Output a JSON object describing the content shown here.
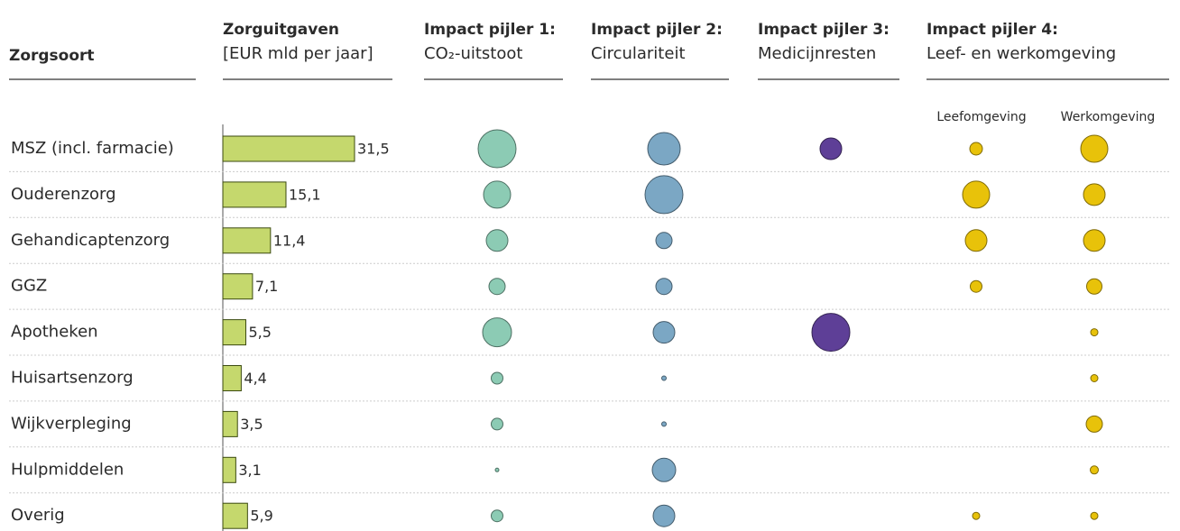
{
  "header": {
    "category": "Zorgsoort",
    "spending": {
      "title": "Zorguitgaven",
      "unit": "[EUR mld per jaar]"
    },
    "pillars": [
      {
        "title": "Impact pijler 1:",
        "subtitle": "CO₂-uitstoot"
      },
      {
        "title": "Impact pijler 2:",
        "subtitle": "Circulariteit"
      },
      {
        "title": "Impact pijler 3:",
        "subtitle": "Medicijnresten"
      },
      {
        "title": "Impact pijler 4:",
        "subtitle": "Leef- en werkomgeving",
        "columns": [
          "Leefomgeving",
          "Werkomgeving"
        ]
      }
    ]
  },
  "chart_data": {
    "type": "bubble-table",
    "categories": [
      "MSZ (incl. farmacie)",
      "Ouderenzorg",
      "Gehandicaptenzorg",
      "GGZ",
      "Apotheken",
      "Huisartsenzorg",
      "Wijkverpleging",
      "Hulpmiddelen",
      "Overig"
    ],
    "spending": {
      "values": [
        31.5,
        15.1,
        11.4,
        7.1,
        5.5,
        4.4,
        3.5,
        3.1,
        5.9
      ],
      "value_labels": [
        "31,5",
        "15,1",
        "11,4",
        "7,1",
        "5,5",
        "4,4",
        "3,5",
        "3,1",
        "5,9"
      ],
      "color": "#c5d86d"
    },
    "series": [
      {
        "color": "#8ccbb4",
        "values": [
          42,
          30,
          24,
          18,
          32,
          13,
          13,
          4,
          13
        ]
      },
      {
        "color": "#7ba7c4",
        "values": [
          36,
          42,
          18,
          18,
          24,
          5,
          5,
          26,
          24
        ]
      },
      {
        "color": "#5e3f97",
        "values": [
          24,
          null,
          null,
          null,
          42,
          null,
          null,
          null,
          null
        ]
      },
      {
        "color": "#e8c20a",
        "values": [
          14,
          30,
          24,
          13,
          null,
          null,
          null,
          null,
          8
        ]
      },
      {
        "color": "#e8c20a",
        "values": [
          30,
          24,
          24,
          17,
          8,
          8,
          18,
          9,
          8
        ]
      }
    ]
  }
}
